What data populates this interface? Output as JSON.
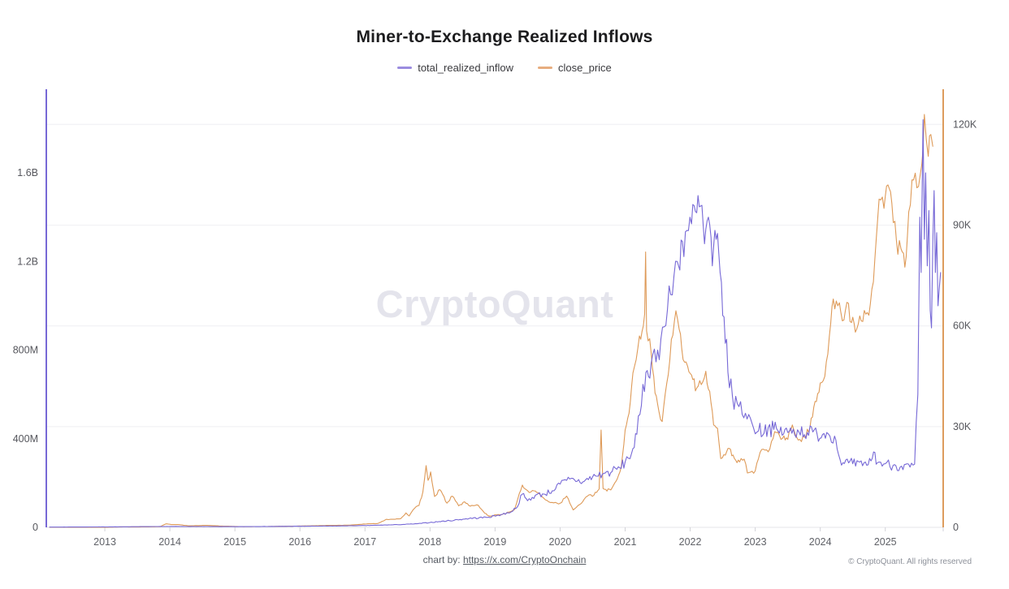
{
  "page": {
    "title": "Miner-to-Exchange Realized Inflows"
  },
  "legend": [
    {
      "label": "total_realized_inflow",
      "swatch_color": "#9b8ce0"
    },
    {
      "label": "close_price",
      "swatch_color": "#e7ad7f"
    }
  ],
  "watermark": "CryptoQuant",
  "footer": {
    "chart_by_prefix": "chart by: ",
    "link_text": "https://x.com/CryptoOnchain",
    "copyright": "© CryptoQuant. All rights reserved"
  },
  "chart_data": {
    "type": "line",
    "title": "Miner-to-Exchange Realized Inflows",
    "grid": "horizontal-only",
    "legend_position": "top-center",
    "x_axis": {
      "min": 2012.1,
      "max": 2025.89,
      "tick_years": [
        2013,
        2014,
        2015,
        2016,
        2017,
        2018,
        2019,
        2020,
        2021,
        2022,
        2023,
        2024,
        2025
      ]
    },
    "left_axis": {
      "series": "total_realized_inflow",
      "unit": "USD (M = millions, B = billions)",
      "max_value_m": 1970,
      "axis_color": "#7668d6",
      "ticks": [
        {
          "v": 0,
          "label": "0"
        },
        {
          "v": 400,
          "label": "400M"
        },
        {
          "v": 800,
          "label": "800M"
        },
        {
          "v": 1200,
          "label": "1.2B"
        },
        {
          "v": 1600,
          "label": "1.6B"
        }
      ]
    },
    "right_axis": {
      "series": "close_price",
      "unit": "USD (K = thousands)",
      "max_value_k": 130,
      "axis_color": "#dd9c5d",
      "ticks": [
        {
          "v": 0,
          "label": "0"
        },
        {
          "v": 30,
          "label": "30K"
        },
        {
          "v": 60,
          "label": "60K"
        },
        {
          "v": 90,
          "label": "90K"
        },
        {
          "v": 120,
          "label": "120K"
        }
      ]
    },
    "series": [
      {
        "name": "close_price",
        "axis": "right",
        "color": "#de9a58",
        "width": 1.1,
        "volatility": 0.04,
        "seed": 13,
        "points": [
          [
            2012.15,
            0.005
          ],
          [
            2013.0,
            0.013
          ],
          [
            2013.3,
            0.12
          ],
          [
            2013.5,
            0.09
          ],
          [
            2013.85,
            0.2
          ],
          [
            2013.94,
            1.05
          ],
          [
            2014.02,
            0.83
          ],
          [
            2014.12,
            0.85
          ],
          [
            2014.3,
            0.45
          ],
          [
            2014.55,
            0.6
          ],
          [
            2014.85,
            0.35
          ],
          [
            2015.1,
            0.22
          ],
          [
            2015.5,
            0.25
          ],
          [
            2015.85,
            0.35
          ],
          [
            2016.1,
            0.42
          ],
          [
            2016.45,
            0.58
          ],
          [
            2016.75,
            0.65
          ],
          [
            2017.0,
            1.0
          ],
          [
            2017.2,
            1.15
          ],
          [
            2017.33,
            2.4
          ],
          [
            2017.42,
            2.4
          ],
          [
            2017.55,
            2.6
          ],
          [
            2017.63,
            4.3
          ],
          [
            2017.68,
            3.4
          ],
          [
            2017.76,
            5.6
          ],
          [
            2017.83,
            6.5
          ],
          [
            2017.89,
            10.5
          ],
          [
            2017.94,
            18.4
          ],
          [
            2017.97,
            14.0
          ],
          [
            2018.01,
            16.5
          ],
          [
            2018.07,
            9.2
          ],
          [
            2018.15,
            11.2
          ],
          [
            2018.26,
            7.2
          ],
          [
            2018.34,
            9.3
          ],
          [
            2018.44,
            6.4
          ],
          [
            2018.53,
            7.6
          ],
          [
            2018.62,
            6.3
          ],
          [
            2018.74,
            6.6
          ],
          [
            2018.84,
            4.2
          ],
          [
            2018.92,
            3.3
          ],
          [
            2019.02,
            3.7
          ],
          [
            2019.15,
            4.0
          ],
          [
            2019.3,
            5.3
          ],
          [
            2019.42,
            12.6
          ],
          [
            2019.48,
            11.2
          ],
          [
            2019.55,
            10.5
          ],
          [
            2019.62,
            10.8
          ],
          [
            2019.7,
            9.5
          ],
          [
            2019.8,
            8.0
          ],
          [
            2019.9,
            7.3
          ],
          [
            2020.0,
            7.2
          ],
          [
            2020.1,
            9.3
          ],
          [
            2020.2,
            5.2
          ],
          [
            2020.3,
            6.8
          ],
          [
            2020.42,
            9.3
          ],
          [
            2020.52,
            9.6
          ],
          [
            2020.6,
            11.4
          ],
          [
            2020.63,
            29.0
          ],
          [
            2020.66,
            11.6
          ],
          [
            2020.72,
            10.8
          ],
          [
            2020.8,
            11.8
          ],
          [
            2020.88,
            14.5
          ],
          [
            2020.94,
            18.0
          ],
          [
            2021.0,
            29.0
          ],
          [
            2021.06,
            34.0
          ],
          [
            2021.12,
            46.0
          ],
          [
            2021.17,
            50.0
          ],
          [
            2021.22,
            57.0
          ],
          [
            2021.28,
            60.0
          ],
          [
            2021.3,
            63.5
          ],
          [
            2021.315,
            82.0
          ],
          [
            2021.33,
            58.5
          ],
          [
            2021.4,
            52.0
          ],
          [
            2021.46,
            40.0
          ],
          [
            2021.52,
            34.5
          ],
          [
            2021.57,
            31.5
          ],
          [
            2021.64,
            43.0
          ],
          [
            2021.71,
            56.0
          ],
          [
            2021.78,
            64.5
          ],
          [
            2021.83,
            59.0
          ],
          [
            2021.89,
            50.0
          ],
          [
            2021.96,
            48.0
          ],
          [
            2022.04,
            44.0
          ],
          [
            2022.1,
            41.5
          ],
          [
            2022.17,
            42.5
          ],
          [
            2022.24,
            46.5
          ],
          [
            2022.3,
            40.5
          ],
          [
            2022.36,
            30.5
          ],
          [
            2022.42,
            29.5
          ],
          [
            2022.47,
            20.5
          ],
          [
            2022.54,
            21.5
          ],
          [
            2022.6,
            23.5
          ],
          [
            2022.68,
            20.5
          ],
          [
            2022.76,
            19.5
          ],
          [
            2022.83,
            20.3
          ],
          [
            2022.88,
            16.2
          ],
          [
            2023.0,
            16.8
          ],
          [
            2023.1,
            23.2
          ],
          [
            2023.2,
            22.5
          ],
          [
            2023.3,
            28.5
          ],
          [
            2023.42,
            26.5
          ],
          [
            2023.5,
            26.2
          ],
          [
            2023.57,
            30.5
          ],
          [
            2023.66,
            26.0
          ],
          [
            2023.76,
            26.8
          ],
          [
            2023.84,
            29.5
          ],
          [
            2023.92,
            37.5
          ],
          [
            2024.0,
            43.0
          ],
          [
            2024.07,
            45.0
          ],
          [
            2024.14,
            57.0
          ],
          [
            2024.2,
            68.0
          ],
          [
            2024.27,
            66.0
          ],
          [
            2024.34,
            61.5
          ],
          [
            2024.41,
            67.0
          ],
          [
            2024.48,
            61.0
          ],
          [
            2024.56,
            59.0
          ],
          [
            2024.63,
            61.5
          ],
          [
            2024.7,
            63.5
          ],
          [
            2024.77,
            66.5
          ],
          [
            2024.84,
            80.0
          ],
          [
            2024.88,
            91.0
          ],
          [
            2024.93,
            97.5
          ],
          [
            2024.98,
            95.0
          ],
          [
            2025.04,
            102.0
          ],
          [
            2025.1,
            96.5
          ],
          [
            2025.17,
            85.5
          ],
          [
            2025.24,
            83.0
          ],
          [
            2025.3,
            77.5
          ],
          [
            2025.36,
            94.0
          ],
          [
            2025.41,
            103.5
          ],
          [
            2025.46,
            105.5
          ],
          [
            2025.51,
            101.5
          ],
          [
            2025.56,
            108.0
          ],
          [
            2025.6,
            123.0
          ],
          [
            2025.63,
            115.5
          ],
          [
            2025.66,
            110.5
          ],
          [
            2025.7,
            117.0
          ],
          [
            2025.73,
            113.5
          ]
        ]
      },
      {
        "name": "total_realized_inflow",
        "axis": "left",
        "color": "#7668d6",
        "width": 1.1,
        "volatility": 0.085,
        "seed": 7,
        "points": [
          [
            2012.15,
            1
          ],
          [
            2013.0,
            2
          ],
          [
            2014.0,
            4
          ],
          [
            2015.0,
            3
          ],
          [
            2016.0,
            5
          ],
          [
            2016.5,
            6
          ],
          [
            2017.0,
            8
          ],
          [
            2017.5,
            12
          ],
          [
            2017.8,
            16
          ],
          [
            2018.0,
            22
          ],
          [
            2018.3,
            30
          ],
          [
            2018.6,
            40
          ],
          [
            2018.9,
            46
          ],
          [
            2019.05,
            55
          ],
          [
            2019.2,
            65
          ],
          [
            2019.32,
            85
          ],
          [
            2019.42,
            150
          ],
          [
            2019.5,
            120
          ],
          [
            2019.62,
            145
          ],
          [
            2019.75,
            150
          ],
          [
            2019.88,
            165
          ],
          [
            2020.0,
            195
          ],
          [
            2020.1,
            212
          ],
          [
            2020.22,
            215
          ],
          [
            2020.35,
            205
          ],
          [
            2020.5,
            228
          ],
          [
            2020.65,
            240
          ],
          [
            2020.8,
            252
          ],
          [
            2020.92,
            268
          ],
          [
            2021.0,
            295
          ],
          [
            2021.1,
            335
          ],
          [
            2021.18,
            420
          ],
          [
            2021.25,
            550
          ],
          [
            2021.32,
            700
          ],
          [
            2021.4,
            740
          ],
          [
            2021.5,
            800
          ],
          [
            2021.6,
            905
          ],
          [
            2021.7,
            1050
          ],
          [
            2021.8,
            1200
          ],
          [
            2021.88,
            1290
          ],
          [
            2021.95,
            1340
          ],
          [
            2022.02,
            1370
          ],
          [
            2022.1,
            1420
          ],
          [
            2022.16,
            1450
          ],
          [
            2022.22,
            1280
          ],
          [
            2022.28,
            1400
          ],
          [
            2022.34,
            1180
          ],
          [
            2022.4,
            1300
          ],
          [
            2022.46,
            1150
          ],
          [
            2022.52,
            950
          ],
          [
            2022.58,
            700
          ],
          [
            2022.65,
            590
          ],
          [
            2022.75,
            545
          ],
          [
            2022.85,
            515
          ],
          [
            2022.95,
            470
          ],
          [
            2023.05,
            435
          ],
          [
            2023.2,
            450
          ],
          [
            2023.35,
            435
          ],
          [
            2023.5,
            428
          ],
          [
            2023.65,
            440
          ],
          [
            2023.8,
            428
          ],
          [
            2023.95,
            422
          ],
          [
            2024.1,
            428
          ],
          [
            2024.22,
            412
          ],
          [
            2024.28,
            330
          ],
          [
            2024.35,
            292
          ],
          [
            2024.5,
            287
          ],
          [
            2024.65,
            278
          ],
          [
            2024.78,
            300
          ],
          [
            2024.82,
            340
          ],
          [
            2024.88,
            292
          ],
          [
            2025.0,
            287
          ],
          [
            2025.12,
            280
          ],
          [
            2025.25,
            276
          ],
          [
            2025.38,
            272
          ],
          [
            2025.45,
            285
          ],
          [
            2025.5,
            600
          ],
          [
            2025.53,
            1400
          ],
          [
            2025.55,
            1150
          ],
          [
            2025.58,
            1840
          ],
          [
            2025.6,
            1300
          ],
          [
            2025.62,
            1600
          ],
          [
            2025.645,
            1180
          ],
          [
            2025.67,
            1430
          ],
          [
            2025.69,
            980
          ],
          [
            2025.71,
            900
          ],
          [
            2025.73,
            1280
          ],
          [
            2025.75,
            1520
          ],
          [
            2025.77,
            1150
          ],
          [
            2025.79,
            1330
          ],
          [
            2025.81,
            1000
          ],
          [
            2025.83,
            1080
          ],
          [
            2025.85,
            1150
          ]
        ]
      }
    ]
  }
}
